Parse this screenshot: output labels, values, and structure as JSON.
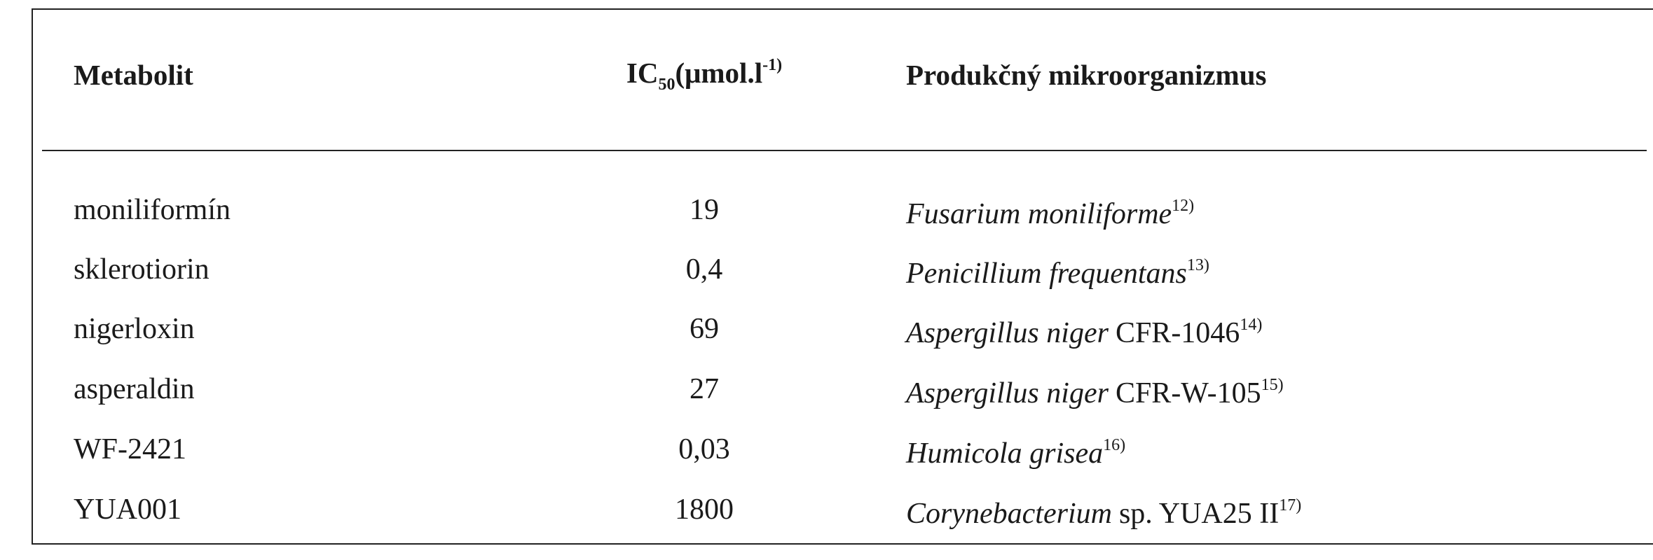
{
  "table": {
    "header": {
      "metabolite": "Metabolit",
      "ic50": {
        "main": "IC",
        "sub": "50",
        "unit": "(μmol.l",
        "sup": "-1)"
      },
      "organism": "Produkčný mikroorganizmus"
    },
    "rows": [
      {
        "metabolite": "moniliformín",
        "ic50": "19",
        "organism": {
          "name": "Fusarium moniliforme",
          "ref": "12)"
        }
      },
      {
        "metabolite": "sklerotiorin",
        "ic50": "0,4",
        "organism": {
          "name": "Penicillium frequentans",
          "ref": "13)"
        }
      },
      {
        "metabolite": "nigerloxin",
        "ic50": "69",
        "organism": {
          "name": "Aspergillus niger",
          "strain": "CFR-1046",
          "ref": "14)"
        }
      },
      {
        "metabolite": "asperaldin",
        "ic50": "27",
        "organism": {
          "name": "Aspergillus niger",
          "strain": "CFR-W-105",
          "ref": "15)"
        }
      },
      {
        "metabolite": "WF-2421",
        "ic50": "0,03",
        "organism": {
          "name": "Humicola grisea",
          "ref": "16)"
        }
      },
      {
        "metabolite": "YUA001",
        "ic50": "1800",
        "organism": {
          "name": "Corynebacterium",
          "strain": "sp. YUA25 II",
          "ref": "17)"
        }
      }
    ]
  }
}
